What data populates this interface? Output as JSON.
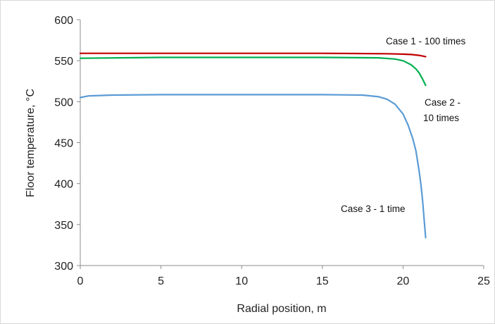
{
  "chart_data": {
    "type": "line",
    "title": "",
    "xlabel": "Radial position, m",
    "ylabel": "Floor temperature, °C",
    "xlim": [
      0,
      25
    ],
    "ylim": [
      300,
      600
    ],
    "xticks": [
      0,
      5,
      10,
      15,
      20,
      25
    ],
    "yticks": [
      300,
      350,
      400,
      450,
      500,
      550,
      600
    ],
    "grid": false,
    "series": [
      {
        "name": "Case 1 - 100 times",
        "color": "#c00000",
        "x": [
          0,
          5,
          10,
          15,
          19,
          20,
          20.5,
          21,
          21.4
        ],
        "y": [
          559,
          559,
          559,
          559,
          558.5,
          558,
          557.5,
          556.5,
          555
        ]
      },
      {
        "name": "Case 2 - 10 times",
        "color": "#00b050",
        "x": [
          0,
          5,
          10,
          15,
          18.5,
          19.5,
          20,
          20.5,
          20.8,
          21,
          21.2,
          21.4
        ],
        "y": [
          553,
          554,
          554,
          554,
          553.5,
          552,
          550,
          545,
          540,
          535,
          528,
          520
        ]
      },
      {
        "name": "Case 3 - 1 time",
        "color": "#5b9bd5",
        "x": [
          0,
          0.5,
          2,
          5,
          10,
          15,
          17.5,
          18.5,
          19,
          19.5,
          20,
          20.3,
          20.6,
          20.8,
          21,
          21.1,
          21.2,
          21.3,
          21.4
        ],
        "y": [
          505,
          507,
          508,
          508.5,
          508.5,
          508.5,
          508,
          506,
          503,
          497,
          485,
          472,
          455,
          440,
          415,
          400,
          382,
          358,
          334
        ]
      }
    ],
    "annotations": [
      {
        "text": "Case 1 - 100 times"
      },
      {
        "text": "Case 2 -"
      },
      {
        "text": "10 times"
      },
      {
        "text": "Case 3 - 1 time"
      }
    ]
  }
}
